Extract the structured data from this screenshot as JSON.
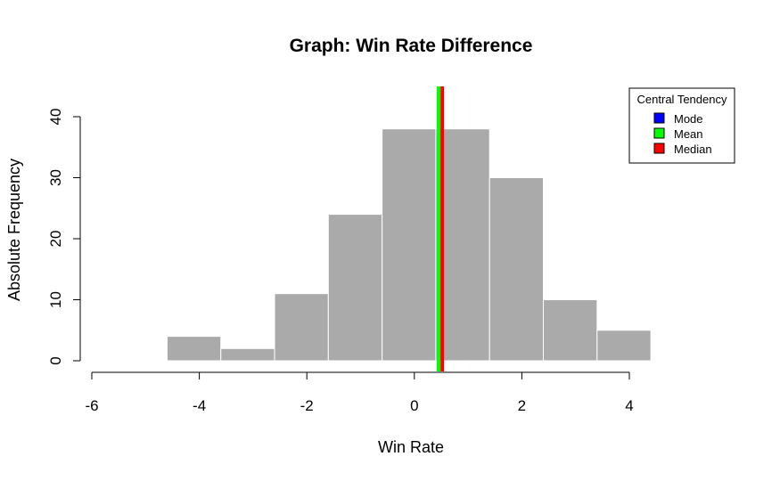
{
  "chart_data": {
    "type": "bar",
    "title": "Graph: Win Rate Difference",
    "xlabel": "Win Rate",
    "ylabel": "Absolute Frequency",
    "xlim": [
      -6,
      4
    ],
    "ylim": [
      0,
      40
    ],
    "x_ticks": [
      -6,
      -4,
      -2,
      0,
      2,
      4
    ],
    "y_ticks": [
      0,
      10,
      20,
      30,
      40
    ],
    "bins": [
      {
        "from": -4.6,
        "to": -3.6,
        "count": 4
      },
      {
        "from": -3.6,
        "to": -2.6,
        "count": 2
      },
      {
        "from": -2.6,
        "to": -1.6,
        "count": 11
      },
      {
        "from": -1.6,
        "to": -0.6,
        "count": 24
      },
      {
        "from": -0.6,
        "to": 0.4,
        "count": 38
      },
      {
        "from": 0.4,
        "to": 1.4,
        "count": 38
      },
      {
        "from": 1.4,
        "to": 2.4,
        "count": 30
      },
      {
        "from": 2.4,
        "to": 3.4,
        "count": 10
      },
      {
        "from": 3.4,
        "to": 4.4,
        "count": 5
      }
    ],
    "bar_color": "#aaaaaa",
    "central_lines": [
      {
        "name": "Mode",
        "x": 0.45,
        "color": "#0000ff"
      },
      {
        "name": "Mean",
        "x": 0.45,
        "color": "#00ff00"
      },
      {
        "name": "Median",
        "x": 0.52,
        "color": "#ff0000"
      }
    ],
    "legend": {
      "title": "Central Tendency",
      "position": "top-right",
      "entries": [
        {
          "label": "Mode",
          "color": "#0000ff"
        },
        {
          "label": "Mean",
          "color": "#00ff00"
        },
        {
          "label": "Median",
          "color": "#ff0000"
        }
      ]
    }
  }
}
